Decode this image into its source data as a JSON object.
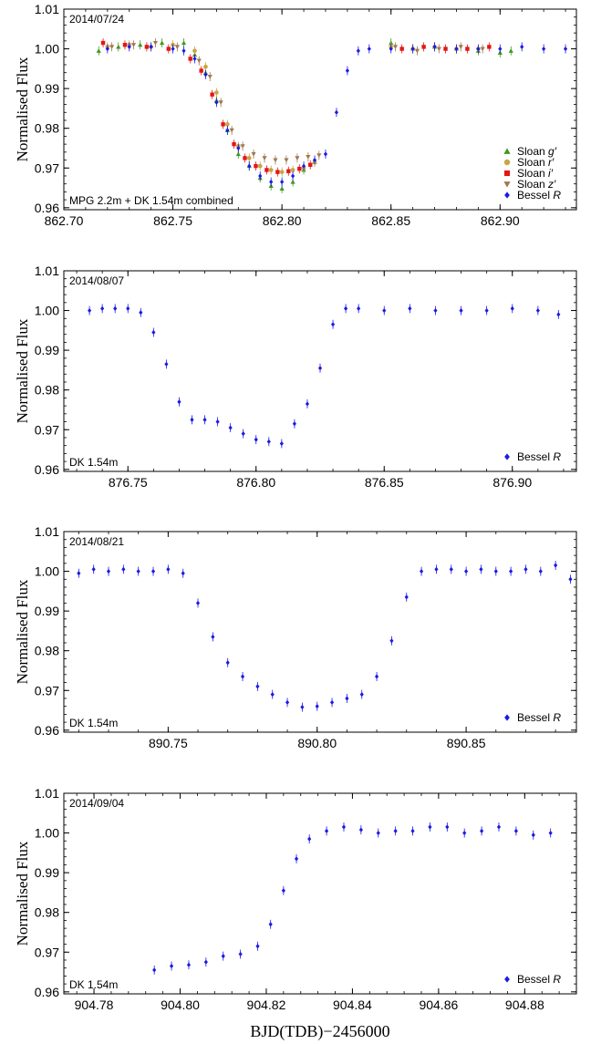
{
  "figure": {
    "xlabel": "BJD(TDB)−2456000",
    "ylabel": "Normalised Flux"
  },
  "chart_data": [
    {
      "type": "scatter",
      "date": "2014/07/24",
      "note": "MPG 2.2m + DK 1.54m combined",
      "xlim": [
        862.7,
        862.935
      ],
      "ylim": [
        0.9595,
        1.01
      ],
      "xticks": [
        "862.70",
        "862.75",
        "862.80",
        "862.85",
        "862.90"
      ],
      "yticks": [
        "0.96",
        "0.97",
        "0.98",
        "0.99",
        "1.00",
        "1.01"
      ],
      "legend_position": "bottom-right",
      "series": [
        {
          "name": "Sloan g′",
          "label": "Sloan",
          "filter": "g′",
          "marker": "triangle-up",
          "color": "#3f9a1f",
          "x": [
            862.716,
            862.725,
            862.735,
            862.745,
            862.755,
            862.76,
            862.765,
            862.77,
            862.775,
            862.78,
            862.785,
            862.79,
            862.795,
            862.8,
            862.805,
            862.81,
            862.815,
            862.85,
            862.86,
            862.87,
            862.88,
            862.89,
            862.9,
            862.905
          ],
          "y": [
            0.9995,
            1.0005,
            1.001,
            1.0015,
            1.0015,
            0.9985,
            0.994,
            0.987,
            0.9795,
            0.9735,
            0.9705,
            0.9675,
            0.9655,
            0.9648,
            0.9665,
            0.9695,
            0.9715,
            1.0015,
            1.0,
            1.0005,
            1.0,
            0.9995,
            0.999,
            0.9995
          ]
        },
        {
          "name": "Sloan r′",
          "label": "Sloan",
          "filter": "r′",
          "marker": "circle",
          "color": "#c9a545",
          "x": [
            862.72,
            862.73,
            862.74,
            862.75,
            862.76,
            862.765,
            862.77,
            862.775,
            862.78,
            862.785,
            862.79,
            862.795,
            862.8,
            862.805,
            862.81,
            862.815,
            862.85,
            862.86,
            862.87,
            862.88,
            862.89
          ],
          "y": [
            1.0005,
            1.001,
            1.0005,
            1.001,
            0.9995,
            0.9955,
            0.989,
            0.981,
            0.9755,
            0.9725,
            0.9705,
            0.9695,
            0.969,
            0.9695,
            0.97,
            0.9715,
            1.0005,
            1.0,
            1.0005,
            1.0,
            1.0
          ]
        },
        {
          "name": "Sloan i′",
          "label": "Sloan",
          "filter": "i′",
          "marker": "square",
          "color": "#e41616",
          "x": [
            862.718,
            862.728,
            862.738,
            862.748,
            862.758,
            862.763,
            862.768,
            862.773,
            862.778,
            862.783,
            862.788,
            862.793,
            862.798,
            862.803,
            862.808,
            862.813,
            862.855,
            862.865,
            862.875,
            862.885,
            862.895
          ],
          "y": [
            1.0015,
            1.001,
            1.0005,
            1.0,
            0.9975,
            0.9945,
            0.9885,
            0.981,
            0.976,
            0.9725,
            0.9705,
            0.9695,
            0.969,
            0.9692,
            0.9698,
            0.9708,
            1.0,
            1.0005,
            1.0,
            1.0,
            1.0005
          ]
        },
        {
          "name": "Sloan z′",
          "label": "Sloan",
          "filter": "z′",
          "marker": "triangle-down",
          "color": "#a07850",
          "x": [
            862.722,
            862.732,
            862.742,
            862.752,
            862.762,
            862.767,
            862.772,
            862.777,
            862.782,
            862.787,
            862.792,
            862.797,
            862.802,
            862.807,
            862.812,
            862.817,
            862.852,
            862.862,
            862.872,
            862.882,
            862.892
          ],
          "y": [
            1.0005,
            1.001,
            1.0015,
            1.0005,
            0.997,
            0.993,
            0.9865,
            0.9795,
            0.9755,
            0.9735,
            0.9725,
            0.972,
            0.972,
            0.9725,
            0.9728,
            0.9732,
            1.0005,
            0.9995,
            1.0,
            1.0005,
            1.0
          ]
        },
        {
          "name": "Bessel R",
          "label": "Bessel",
          "filter": "R",
          "marker": "diamond",
          "color": "#1a1ae6",
          "x": [
            862.72,
            862.73,
            862.74,
            862.75,
            862.755,
            862.76,
            862.765,
            862.77,
            862.775,
            862.78,
            862.785,
            862.79,
            862.795,
            862.8,
            862.805,
            862.81,
            862.815,
            862.82,
            862.825,
            862.83,
            862.835,
            862.84,
            862.85,
            862.86,
            862.87,
            862.88,
            862.89,
            862.9,
            862.91,
            862.92,
            862.93
          ],
          "y": [
            1.0,
            1.0005,
            1.0005,
            1.0,
            0.9995,
            0.9975,
            0.9935,
            0.9865,
            0.9795,
            0.975,
            0.9705,
            0.968,
            0.9665,
            0.9665,
            0.968,
            0.9705,
            0.972,
            0.9735,
            0.984,
            0.9945,
            0.9995,
            1.0,
            1.0,
            1.0,
            1.0005,
            1.0,
            1.0,
            1.0,
            1.0005,
            1.0,
            1.0
          ]
        }
      ]
    },
    {
      "type": "scatter",
      "date": "2014/08/07",
      "note": "DK 1.54m",
      "xlim": [
        876.725,
        876.925
      ],
      "ylim": [
        0.9595,
        1.01
      ],
      "xticks": [
        "876.75",
        "876.80",
        "876.85",
        "876.90"
      ],
      "yticks": [
        "0.96",
        "0.97",
        "0.98",
        "0.99",
        "1.00",
        "1.01"
      ],
      "legend_position": "bottom-right",
      "series": [
        {
          "name": "Bessel R",
          "label": "Bessel",
          "filter": "R",
          "marker": "diamond",
          "color": "#1a1ae6",
          "x": [
            876.735,
            876.74,
            876.745,
            876.75,
            876.755,
            876.76,
            876.765,
            876.77,
            876.775,
            876.78,
            876.785,
            876.79,
            876.795,
            876.8,
            876.805,
            876.81,
            876.815,
            876.82,
            876.825,
            876.83,
            876.835,
            876.84,
            876.85,
            876.86,
            876.87,
            876.88,
            876.89,
            876.9,
            876.91,
            876.918
          ],
          "y": [
            1.0,
            1.0005,
            1.0005,
            1.0005,
            0.9995,
            0.9945,
            0.9865,
            0.977,
            0.9725,
            0.9725,
            0.972,
            0.9705,
            0.969,
            0.9675,
            0.967,
            0.9665,
            0.9715,
            0.9765,
            0.9855,
            0.9965,
            1.0005,
            1.0005,
            1.0,
            1.0005,
            1.0,
            1.0,
            1.0,
            1.0005,
            1.0,
            0.999
          ]
        }
      ]
    },
    {
      "type": "scatter",
      "date": "2014/08/21",
      "note": "DK 1.54m",
      "xlim": [
        890.715,
        890.887
      ],
      "ylim": [
        0.9595,
        1.01
      ],
      "xticks": [
        "890.75",
        "890.80",
        "890.85"
      ],
      "yticks": [
        "0.96",
        "0.97",
        "0.98",
        "0.99",
        "1.00",
        "1.01"
      ],
      "legend_position": "bottom-right",
      "series": [
        {
          "name": "Bessel R",
          "label": "Bessel",
          "filter": "R",
          "marker": "diamond",
          "color": "#1a1ae6",
          "x": [
            890.72,
            890.725,
            890.73,
            890.735,
            890.74,
            890.745,
            890.75,
            890.755,
            890.76,
            890.765,
            890.77,
            890.775,
            890.78,
            890.785,
            890.79,
            890.795,
            890.8,
            890.805,
            890.81,
            890.815,
            890.82,
            890.825,
            890.83,
            890.835,
            890.84,
            890.845,
            890.85,
            890.855,
            890.86,
            890.865,
            890.87,
            890.875,
            890.88,
            890.885
          ],
          "y": [
            0.9995,
            1.0005,
            1.0,
            1.0005,
            1.0,
            1.0,
            1.0005,
            0.9995,
            0.992,
            0.9835,
            0.977,
            0.9735,
            0.971,
            0.969,
            0.967,
            0.9658,
            0.966,
            0.967,
            0.968,
            0.969,
            0.9735,
            0.9825,
            0.9935,
            1.0,
            1.0005,
            1.0005,
            1.0,
            1.0005,
            1.0,
            1.0,
            1.0005,
            1.0,
            1.0015,
            0.998
          ]
        }
      ]
    },
    {
      "type": "scatter",
      "date": "2014/09/04",
      "note": "DK 1.54m",
      "xlim": [
        904.773,
        904.892
      ],
      "ylim": [
        0.9595,
        1.01
      ],
      "xticks": [
        "904.78",
        "904.80",
        "904.82",
        "904.84",
        "904.86",
        "904.88"
      ],
      "yticks": [
        "0.96",
        "0.97",
        "0.98",
        "0.99",
        "1.00",
        "1.01"
      ],
      "legend_position": "bottom-right",
      "series": [
        {
          "name": "Bessel R",
          "label": "Bessel",
          "filter": "R",
          "marker": "diamond",
          "color": "#1a1ae6",
          "x": [
            904.794,
            904.798,
            904.802,
            904.806,
            904.81,
            904.814,
            904.818,
            904.821,
            904.824,
            904.827,
            904.83,
            904.834,
            904.838,
            904.842,
            904.846,
            904.85,
            904.854,
            904.858,
            904.862,
            904.866,
            904.87,
            904.874,
            904.878,
            904.882,
            904.886
          ],
          "y": [
            0.9655,
            0.9665,
            0.9668,
            0.9675,
            0.969,
            0.9695,
            0.9715,
            0.977,
            0.9855,
            0.9935,
            0.9985,
            1.0005,
            1.0015,
            1.0008,
            1.0,
            1.0005,
            1.0005,
            1.0015,
            1.0015,
            1.0,
            1.0005,
            1.0015,
            1.0005,
            0.9995,
            1.0
          ]
        }
      ]
    }
  ]
}
